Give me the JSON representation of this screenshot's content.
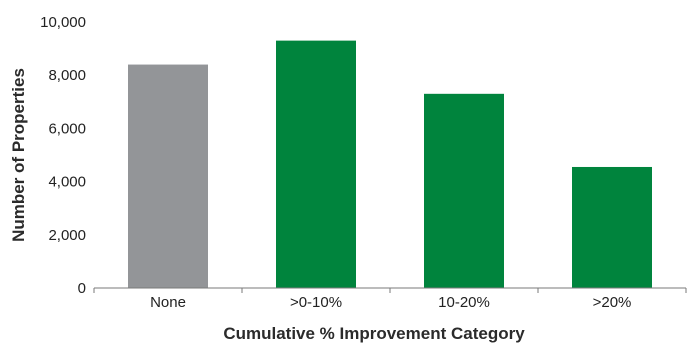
{
  "chart_data": {
    "type": "bar",
    "title": "",
    "xlabel": "Cumulative % Improvement Category",
    "ylabel": "Number of Properties",
    "categories": [
      "None",
      ">0-10%",
      "10-20%",
      ">20%"
    ],
    "values": [
      8400,
      9300,
      7300,
      4550
    ],
    "bar_colors": [
      "#939598",
      "#00843d",
      "#00843d",
      "#00843d"
    ],
    "ylim": [
      0,
      10000
    ],
    "yticks": [
      0,
      2000,
      4000,
      6000,
      8000,
      10000
    ],
    "ytick_labels": [
      "0",
      "2,000",
      "4,000",
      "6,000",
      "8,000",
      "10,000"
    ],
    "grid": false,
    "legend": "none"
  }
}
